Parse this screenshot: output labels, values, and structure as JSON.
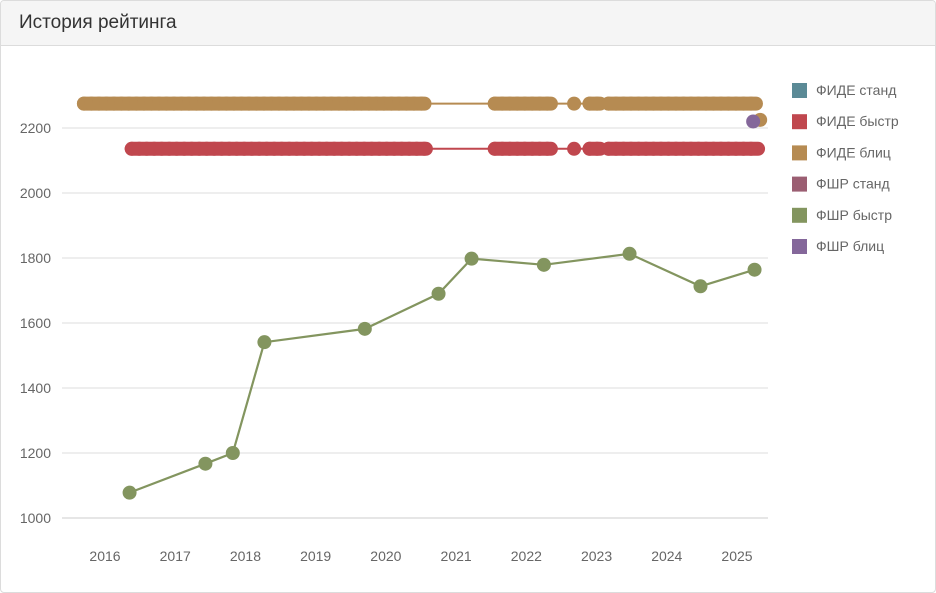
{
  "card": {
    "title": "История рейтинга"
  },
  "chart_data": {
    "type": "line",
    "title": "",
    "xlabel": "",
    "ylabel": "",
    "xlim": [
      2015.65,
      2025.4
    ],
    "ylim": [
      940,
      2350
    ],
    "x_ticks": [
      "2016",
      "2017",
      "2018",
      "2019",
      "2020",
      "2021",
      "2022",
      "2023",
      "2024",
      "2025"
    ],
    "y_ticks": [
      1000,
      1200,
      1400,
      1600,
      1800,
      2000,
      2200
    ],
    "grid": true,
    "legend_position": "right",
    "series": [
      {
        "name": "ФИДЕ станд",
        "color": "#5b8a96",
        "segments": []
      },
      {
        "name": "ФИДЕ быстр",
        "color": "#c0474e",
        "segments": [
          {
            "from": 2016.38,
            "to": 2020.57,
            "dense": true,
            "value": 2136
          },
          {
            "from": 2021.55,
            "to": 2022.35,
            "dense": true,
            "value": 2136
          },
          {
            "from": 2022.68,
            "to": 2022.68,
            "dense": false,
            "value": 2136
          },
          {
            "from": 2022.9,
            "to": 2023.05,
            "dense": true,
            "value": 2136
          },
          {
            "from": 2023.17,
            "to": 2025.3,
            "dense": true,
            "value": 2136
          }
        ],
        "connect": true
      },
      {
        "name": "ФИДЕ блиц",
        "color": "#b68b52",
        "segments": [
          {
            "from": 2015.7,
            "to": 2020.55,
            "dense": true,
            "value": 2275
          },
          {
            "from": 2021.55,
            "to": 2022.35,
            "dense": true,
            "value": 2275
          },
          {
            "from": 2022.68,
            "to": 2022.68,
            "dense": false,
            "value": 2275
          },
          {
            "from": 2022.9,
            "to": 2023.05,
            "dense": true,
            "value": 2275
          },
          {
            "from": 2023.17,
            "to": 2025.27,
            "dense": true,
            "value": 2275
          },
          {
            "from": 2025.33,
            "to": 2025.33,
            "dense": false,
            "value": 2225
          }
        ],
        "connect": true
      },
      {
        "name": "ФШР станд",
        "color": "#9b5e72",
        "segments": []
      },
      {
        "name": "ФШР быстр",
        "color": "#83955f",
        "points": [
          {
            "x": 2016.35,
            "y": 1078
          },
          {
            "x": 2017.43,
            "y": 1167
          },
          {
            "x": 2017.82,
            "y": 1200
          },
          {
            "x": 2018.27,
            "y": 1541
          },
          {
            "x": 2019.7,
            "y": 1582
          },
          {
            "x": 2020.75,
            "y": 1690
          },
          {
            "x": 2021.22,
            "y": 1798
          },
          {
            "x": 2022.25,
            "y": 1779
          },
          {
            "x": 2023.47,
            "y": 1813
          },
          {
            "x": 2024.48,
            "y": 1713
          },
          {
            "x": 2025.25,
            "y": 1764
          }
        ]
      },
      {
        "name": "ФШР блиц",
        "color": "#84679a",
        "points": [
          {
            "x": 2025.23,
            "y": 2220
          }
        ]
      }
    ]
  }
}
